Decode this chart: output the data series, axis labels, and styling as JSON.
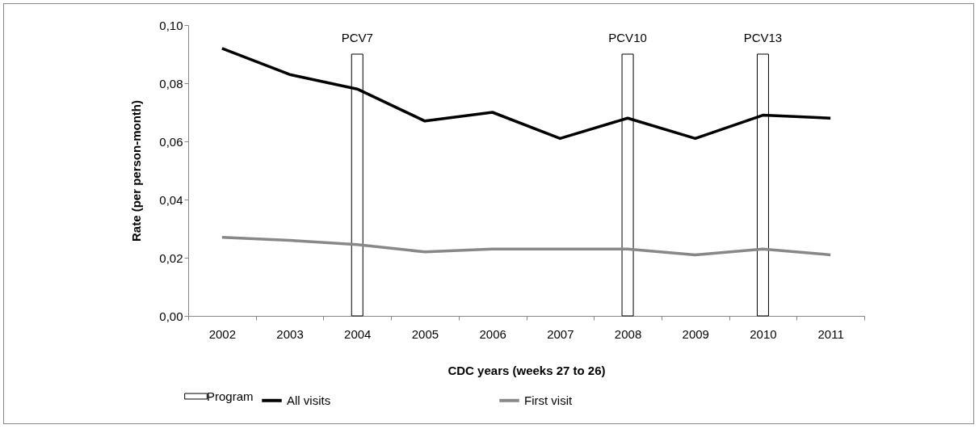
{
  "chart_data": {
    "type": "line",
    "xlabel": "CDC years (weeks 27 to 26)",
    "ylabel": "Rate (per person-month)",
    "categories": [
      "2002",
      "2003",
      "2004",
      "2005",
      "2006",
      "2007",
      "2008",
      "2009",
      "2010",
      "2011"
    ],
    "series": [
      {
        "name": "Program",
        "type": "bar",
        "color": "#ffffff",
        "values": [
          null,
          null,
          0.09,
          null,
          null,
          null,
          0.09,
          null,
          0.09,
          null
        ]
      },
      {
        "name": "All visits",
        "color": "#000000",
        "values": [
          0.092,
          0.083,
          0.078,
          0.067,
          0.07,
          0.061,
          0.068,
          0.061,
          0.069,
          0.068
        ]
      },
      {
        "name": "First visit",
        "color": "#888888",
        "values": [
          0.027,
          0.026,
          0.0245,
          0.022,
          0.023,
          0.023,
          0.023,
          0.021,
          0.023,
          0.021
        ]
      }
    ],
    "annotations": [
      {
        "text": "PCV7",
        "x": "2004",
        "y": 0.09
      },
      {
        "text": "PCV10",
        "x": "2008",
        "y": 0.09
      },
      {
        "text": "PCV13",
        "x": "2010",
        "y": 0.09
      }
    ],
    "ylim": [
      0,
      0.1
    ],
    "yticks": [
      {
        "value": 0,
        "label": "0,00"
      },
      {
        "value": 0.02,
        "label": "0,02"
      },
      {
        "value": 0.04,
        "label": "0,04"
      },
      {
        "value": 0.06,
        "label": "0,06"
      },
      {
        "value": 0.08,
        "label": "0,08"
      },
      {
        "value": 0.1,
        "label": "0,10"
      }
    ],
    "grid": false,
    "legend": "bottom"
  }
}
